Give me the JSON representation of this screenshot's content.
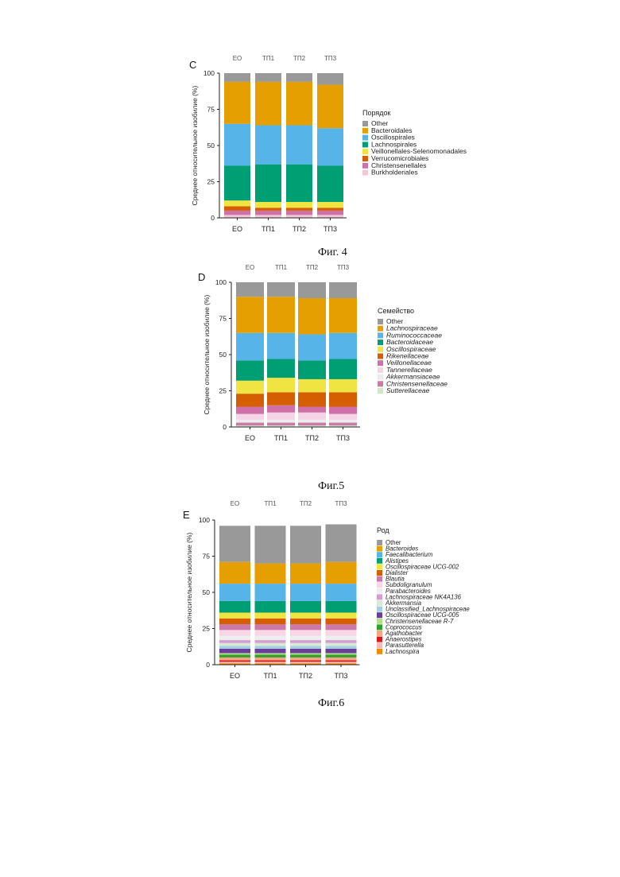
{
  "figures": [
    {
      "caption": "Фиг. 4"
    },
    {
      "caption": "Фиг.5"
    },
    {
      "caption": "Фиг.6"
    }
  ],
  "chart_data": [
    {
      "type": "bar",
      "stacked": true,
      "panel_label": "C",
      "top_labels": [
        "EO",
        "ТП1",
        "ТП2",
        "ТП3"
      ],
      "categories": [
        "EO",
        "ТП1",
        "ТП2",
        "ТП3"
      ],
      "ylabel": "Среднее относительное изобилие (%)",
      "ylim": [
        0,
        100
      ],
      "yticks": [
        0,
        25,
        50,
        75,
        100
      ],
      "legend_title": "Порядок",
      "legend_italic": false,
      "series": [
        {
          "name": "Burkholderiales",
          "color": "#f2c7d6",
          "values": [
            2,
            2,
            2,
            2
          ]
        },
        {
          "name": "Christensenellales",
          "color": "#d070a8",
          "values": [
            3,
            3,
            3,
            3
          ]
        },
        {
          "name": "Verrucomicrobiales",
          "color": "#d55e00",
          "values": [
            3,
            2,
            2,
            2
          ]
        },
        {
          "name": "Veillonellales-Selenomonadales",
          "color": "#f0e442",
          "values": [
            4,
            4,
            4,
            4
          ]
        },
        {
          "name": "Lachnospirales",
          "color": "#009e73",
          "values": [
            24,
            26,
            26,
            25
          ]
        },
        {
          "name": "Oscillospirales",
          "color": "#56b4e9",
          "values": [
            29,
            27,
            27,
            26
          ]
        },
        {
          "name": "Bacteroidales",
          "color": "#e69f00",
          "values": [
            29,
            30,
            30,
            30
          ]
        },
        {
          "name": "Other",
          "color": "#999999",
          "values": [
            6,
            6,
            6,
            8
          ]
        }
      ]
    },
    {
      "type": "bar",
      "stacked": true,
      "panel_label": "D",
      "top_labels": [
        "EO",
        "ТП1",
        "ТП2",
        "ТП3"
      ],
      "categories": [
        "EO",
        "ТП1",
        "ТП2",
        "ТП3"
      ],
      "ylabel": "Среднее относительное изобилие (%)",
      "ylim": [
        0,
        100
      ],
      "yticks": [
        0,
        25,
        50,
        75,
        100
      ],
      "legend_title": "Семейство",
      "legend_italic": true,
      "series": [
        {
          "name": "Sutterellaceae",
          "color": "#cfe8c4",
          "values": [
            1,
            1,
            1,
            1
          ]
        },
        {
          "name": "Christensenellaceae",
          "color": "#cc79a7",
          "values": [
            2,
            2,
            2,
            2
          ]
        },
        {
          "name": "Akkermansiaceae",
          "color": "#ececec",
          "values": [
            2,
            2,
            2,
            2
          ]
        },
        {
          "name": "Tannerellaceae",
          "color": "#f5d5e5",
          "values": [
            4,
            5,
            5,
            4
          ]
        },
        {
          "name": "Veillonellaceae",
          "color": "#d070a8",
          "values": [
            5,
            5,
            4,
            5
          ]
        },
        {
          "name": "Rikenellaceae",
          "color": "#d55e00",
          "values": [
            9,
            9,
            10,
            10
          ]
        },
        {
          "name": "Oscillospiraceae",
          "color": "#f0e442",
          "values": [
            9,
            10,
            9,
            9
          ]
        },
        {
          "name": "Bacteroidaceae",
          "color": "#009e73",
          "values": [
            14,
            13,
            13,
            14
          ]
        },
        {
          "name": "Ruminococcaceae",
          "color": "#56b4e9",
          "values": [
            19,
            18,
            18,
            18
          ]
        },
        {
          "name": "Lachnospiraceae",
          "color": "#e69f00",
          "values": [
            25,
            25,
            25,
            24
          ]
        },
        {
          "name": "Other",
          "color": "#999999",
          "values": [
            10,
            10,
            11,
            11
          ]
        }
      ]
    },
    {
      "type": "bar",
      "stacked": true,
      "panel_label": "E",
      "top_labels": [
        "EO",
        "ТП1",
        "ТП2",
        "ТП3"
      ],
      "categories": [
        "EO",
        "ТП1",
        "ТП2",
        "ТП3"
      ],
      "ylabel": "Среднее относительное изобилие (%)",
      "ylim": [
        0,
        100
      ],
      "yticks": [
        0,
        25,
        50,
        75,
        100
      ],
      "legend_title": "Род",
      "legend_italic": true,
      "series": [
        {
          "name": "Lachnospira",
          "color": "#ee8a00",
          "values": [
            1,
            1,
            1,
            1
          ]
        },
        {
          "name": "Parasutterella",
          "color": "#f6b8b8",
          "values": [
            1,
            1,
            1,
            1
          ]
        },
        {
          "name": "Anaerostipes",
          "color": "#d7191c",
          "values": [
            1,
            1,
            1,
            1
          ]
        },
        {
          "name": "Agathobacter",
          "color": "#f4a582",
          "values": [
            2,
            2,
            2,
            2
          ]
        },
        {
          "name": "Coprococcus",
          "color": "#33a02c",
          "values": [
            2,
            2,
            2,
            2
          ]
        },
        {
          "name": "Christensenellaceae R-7",
          "color": "#b2df8a",
          "values": [
            1,
            1,
            1,
            1
          ]
        },
        {
          "name": "Oscillospiraceae UCG-005",
          "color": "#6a3d9a",
          "values": [
            3,
            3,
            3,
            3
          ]
        },
        {
          "name": "Unclassified_Lachnospiraceae",
          "color": "#a6cee3",
          "values": [
            2,
            2,
            2,
            2
          ]
        },
        {
          "name": "Akkermansia",
          "color": "#d9ead3",
          "values": [
            2,
            2,
            2,
            2
          ]
        },
        {
          "name": "Lachnospiraceae NK4A136",
          "color": "#d59ed0",
          "values": [
            2,
            2,
            2,
            2
          ]
        },
        {
          "name": "Parabacteroides",
          "color": "#eeeeee",
          "values": [
            3,
            3,
            3,
            3
          ]
        },
        {
          "name": "Subdoligranulum",
          "color": "#f7d6e6",
          "values": [
            4,
            4,
            4,
            4
          ]
        },
        {
          "name": "Blautia",
          "color": "#cc79a7",
          "values": [
            4,
            4,
            4,
            4
          ]
        },
        {
          "name": "Dialister",
          "color": "#d55e00",
          "values": [
            4,
            4,
            4,
            4
          ]
        },
        {
          "name": "Oscillospiraceae UCG-002",
          "color": "#f0e442",
          "values": [
            4,
            4,
            4,
            4
          ]
        },
        {
          "name": "Alistipes",
          "color": "#009e73",
          "values": [
            8,
            8,
            8,
            8
          ]
        },
        {
          "name": "Faecalibacterium",
          "color": "#56b4e9",
          "values": [
            12,
            12,
            12,
            12
          ]
        },
        {
          "name": "Bacteroides",
          "color": "#e69f00",
          "values": [
            15,
            14,
            14,
            15
          ]
        },
        {
          "name": "Other",
          "color": "#999999",
          "values": [
            25,
            26,
            26,
            26
          ]
        }
      ]
    }
  ]
}
